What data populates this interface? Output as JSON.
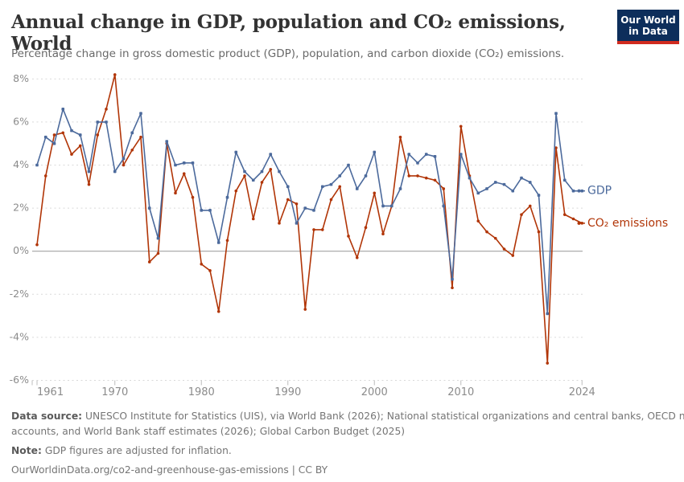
{
  "header": {
    "title": "Annual change in GDP, population and CO₂ emissions, World",
    "subtitle": "Percentage change in gross domestic product (GDP), population, and carbon dioxide (CO₂) emissions.",
    "logo": {
      "line1": "Our World",
      "line2": "in Data",
      "bg_color": "#0d2e5b",
      "bar_color": "#d12b1f"
    }
  },
  "chart_data": {
    "type": "line",
    "title": "Annual change in GDP, population and CO₂ emissions, World",
    "x": [
      1961,
      1962,
      1963,
      1964,
      1965,
      1966,
      1967,
      1968,
      1969,
      1970,
      1971,
      1972,
      1973,
      1974,
      1975,
      1976,
      1977,
      1978,
      1979,
      1980,
      1981,
      1982,
      1983,
      1984,
      1985,
      1986,
      1987,
      1988,
      1989,
      1990,
      1991,
      1992,
      1993,
      1994,
      1995,
      1996,
      1997,
      1998,
      1999,
      2000,
      2001,
      2002,
      2003,
      2004,
      2005,
      2006,
      2007,
      2008,
      2009,
      2010,
      2011,
      2012,
      2013,
      2014,
      2015,
      2016,
      2017,
      2018,
      2019,
      2020,
      2021,
      2022,
      2023,
      2024
    ],
    "series": [
      {
        "name": "GDP",
        "color": "#4C6A9C",
        "marker": "square",
        "values": [
          4.0,
          5.3,
          5.0,
          6.6,
          5.6,
          5.4,
          3.7,
          6.0,
          6.0,
          3.7,
          4.3,
          5.5,
          6.4,
          2.0,
          0.6,
          5.1,
          4.0,
          4.1,
          4.1,
          1.9,
          1.9,
          0.4,
          2.5,
          4.6,
          3.7,
          3.3,
          3.7,
          4.5,
          3.7,
          3.0,
          1.3,
          2.0,
          1.9,
          3.0,
          3.1,
          3.5,
          4.0,
          2.9,
          3.5,
          4.6,
          2.1,
          2.1,
          2.9,
          4.5,
          4.1,
          4.5,
          4.4,
          2.1,
          -1.3,
          4.5,
          3.4,
          2.7,
          2.9,
          3.2,
          3.1,
          2.8,
          3.4,
          3.2,
          2.6,
          -2.9,
          6.4,
          3.3,
          2.8,
          2.8
        ]
      },
      {
        "name": "CO₂ emissions",
        "color": "#B13507",
        "marker": "circle",
        "values": [
          0.3,
          3.5,
          5.4,
          5.5,
          4.5,
          4.9,
          3.1,
          5.4,
          6.6,
          8.2,
          4.0,
          4.7,
          5.3,
          -0.5,
          -0.1,
          5.0,
          2.7,
          3.6,
          2.5,
          -0.6,
          -0.9,
          -2.8,
          0.5,
          2.8,
          3.5,
          1.5,
          3.2,
          3.8,
          1.3,
          2.4,
          2.2,
          -2.7,
          1.0,
          1.0,
          2.4,
          3.0,
          0.7,
          -0.3,
          1.1,
          2.7,
          0.8,
          2.1,
          5.3,
          3.5,
          3.5,
          3.4,
          3.3,
          2.9,
          -1.7,
          5.8,
          3.5,
          1.4,
          0.9,
          0.6,
          0.1,
          -0.2,
          1.7,
          2.1,
          0.9,
          -5.2,
          4.8,
          1.7,
          1.5,
          1.3
        ]
      }
    ],
    "xlabel": "",
    "ylabel": "",
    "ylim": [
      -6,
      8
    ],
    "yticks": [
      8,
      6,
      4,
      2,
      0,
      -2,
      -4,
      -6
    ],
    "ytick_suffix": "%",
    "xticks": [
      1961,
      1970,
      1980,
      1990,
      2000,
      2010,
      2024
    ],
    "grid": "horizontal-dashed",
    "zero_line": true,
    "legend_position": "right-of-line-end",
    "axis_text_color": "#8b8b8b",
    "grid_color": "#d9d9d9",
    "zero_line_color": "#a3a3a3",
    "tick_color": "#bcbcbc"
  },
  "footer": {
    "source_label": "Data source:",
    "source_line1": "UNESCO Institute for Statistics (UIS), via World Bank (2026); National statistical organizations and central banks, OECD national",
    "source_line2": "accounts, and World Bank staff estimates (2026); Global Carbon Budget (2025)",
    "note_label": "Note:",
    "note_text": "GDP figures are adjusted for inflation.",
    "url": "OurWorldinData.org/co2-and-greenhouse-gas-emissions | CC BY"
  }
}
